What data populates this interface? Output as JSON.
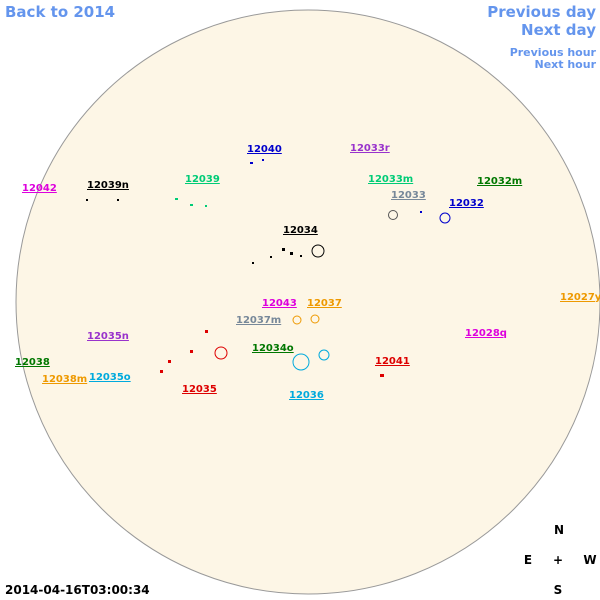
{
  "nav": {
    "back": "Back to 2014",
    "previous_day": "Previous day",
    "next_day": "Next day",
    "previous_hour": "Previous hour",
    "next_hour": "Next hour"
  },
  "regions": [
    "12040",
    "12033r",
    "12042",
    "12039n",
    "12039",
    "12033m",
    "12032m",
    "12033",
    "12032",
    "12034",
    "12043",
    "12037",
    "12027y",
    "12037m",
    "12028q",
    "12035n",
    "12034o",
    "12038",
    "12041",
    "12038m",
    "12035o",
    "12035",
    "12036"
  ],
  "compass": {
    "north": "N",
    "east": "E",
    "center": "+",
    "west": "W",
    "south": "S"
  },
  "timestamp": "2014-04-16T03:00:34"
}
